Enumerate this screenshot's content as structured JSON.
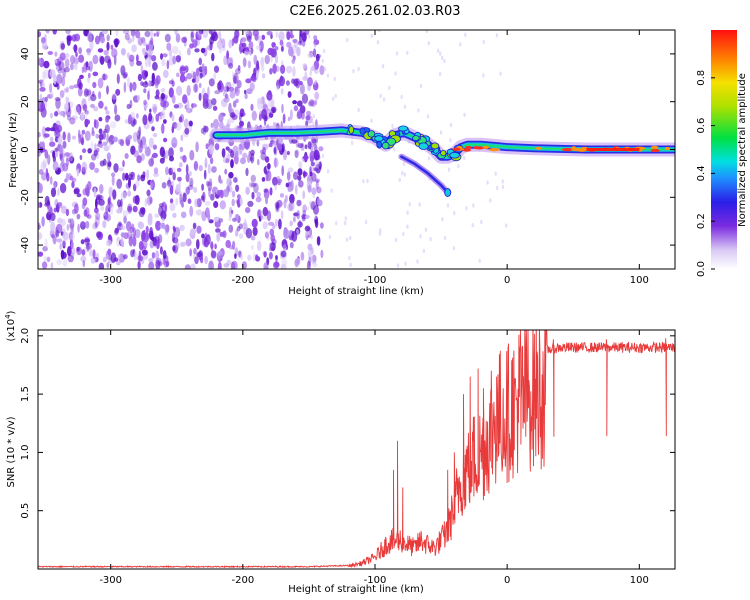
{
  "title": "C2E6.2025.261.02.03.R03",
  "chart_data": [
    {
      "type": "heatmap",
      "name": "spectrogram",
      "xlabel": "Height of straight line (km)",
      "ylabel": "Frequency (Hz)",
      "xlim": [
        -355,
        127
      ],
      "ylim": [
        -50,
        50
      ],
      "xticks": [
        -300,
        -200,
        -100,
        0,
        100
      ],
      "yticks": [
        -40,
        -20,
        0,
        20,
        40
      ],
      "noise_region_x": [
        -355,
        -140
      ],
      "signal_trace": {
        "x": [
          -220,
          -200,
          -180,
          -160,
          -140,
          -125,
          -110,
          -100,
          -92,
          -85,
          -78,
          -70,
          -62,
          -55,
          -50,
          -45,
          -40,
          -35,
          -30,
          -20,
          -10,
          0,
          20,
          60,
          100,
          127
        ],
        "y": [
          6,
          6,
          7,
          7,
          7.5,
          8,
          7,
          5,
          2,
          6,
          7,
          5,
          3,
          0,
          -3,
          -3,
          -2,
          1,
          2,
          2,
          1.5,
          1,
          0.5,
          0,
          0,
          0
        ]
      },
      "secondary_trace": {
        "x": [
          -80,
          -70,
          -60,
          -50,
          -45
        ],
        "y": [
          -3,
          -6,
          -10,
          -15,
          -18
        ]
      },
      "colorbar": {
        "label": "Normalized spectral amplitude",
        "ticks": [
          0.0,
          0.2,
          0.4,
          0.6,
          0.8
        ],
        "range": [
          0,
          1
        ]
      }
    },
    {
      "type": "line",
      "name": "snr",
      "xlabel": "Height of straight line (km)",
      "ylabel": "SNR (10 * v/v)",
      "multiplier_label": "(x10",
      "multiplier_exp": "4",
      "multiplier_close": ")",
      "xlim": [
        -355,
        127
      ],
      "ylim": [
        0,
        2.05
      ],
      "xticks": [
        -300,
        -200,
        -100,
        0,
        100
      ],
      "yticks": [
        0.5,
        1.0,
        1.5,
        2.0
      ],
      "ytick_labels": [
        "0.5",
        "1.0",
        "1.5",
        "2.0"
      ],
      "color": "#e83a3a",
      "envelope": {
        "x": [
          -355,
          -150,
          -120,
          -110,
          -100,
          -95,
          -90,
          -85,
          -80,
          -75,
          -70,
          -65,
          -60,
          -55,
          -50,
          -45,
          -40,
          -35,
          -30,
          -25,
          -20,
          -15,
          -10,
          -5,
          0,
          5,
          10,
          20,
          30,
          40,
          60,
          80,
          100,
          127
        ],
        "y": [
          0.02,
          0.02,
          0.03,
          0.06,
          0.12,
          0.2,
          0.28,
          0.3,
          0.3,
          0.25,
          0.22,
          0.3,
          0.25,
          0.22,
          0.3,
          0.4,
          0.65,
          0.95,
          1.05,
          1.15,
          1.2,
          1.35,
          1.5,
          1.6,
          1.62,
          1.7,
          1.78,
          1.85,
          1.88,
          1.9,
          1.9,
          1.9,
          1.9,
          1.9
        ]
      },
      "spikes": {
        "x": [
          -86,
          -83,
          -79,
          -45,
          -40,
          -33,
          -28,
          -22,
          -18,
          -12,
          -8,
          -3,
          5,
          10,
          35,
          75,
          120
        ],
        "y": [
          0.85,
          1.1,
          0.7,
          0.85,
          1.0,
          1.5,
          1.65,
          1.72,
          1.55,
          1.7,
          1.65,
          1.55,
          1.85,
          2.05,
          1.97,
          1.97,
          1.98
        ]
      }
    }
  ]
}
